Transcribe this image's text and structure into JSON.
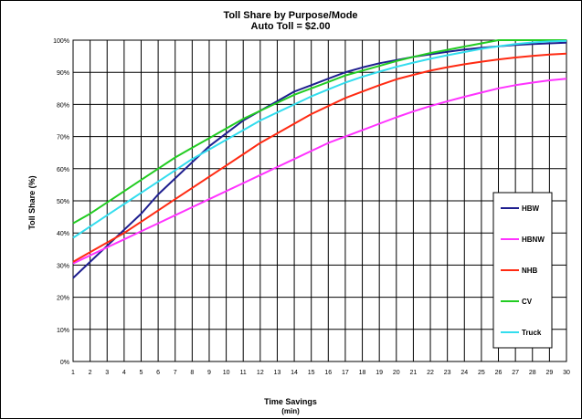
{
  "chart_data": {
    "type": "line",
    "title": "Toll Share by Purpose/Mode",
    "subtitle": "Auto Toll = $2.00",
    "xlabel_line1": "Time Savings",
    "xlabel_line2": "(min)",
    "ylabel": "Toll Share (%)",
    "x": [
      1,
      2,
      3,
      4,
      5,
      6,
      7,
      8,
      9,
      10,
      11,
      12,
      13,
      14,
      15,
      16,
      17,
      18,
      19,
      20,
      21,
      22,
      23,
      24,
      25,
      26,
      27,
      28,
      29,
      30
    ],
    "xlim": [
      1,
      30
    ],
    "ylim": [
      0,
      100
    ],
    "y_ticks": [
      "0%",
      "10%",
      "20%",
      "30%",
      "40%",
      "50%",
      "60%",
      "70%",
      "80%",
      "90%",
      "100%"
    ],
    "grid": true,
    "legend_position": "right",
    "series": [
      {
        "name": "HBW",
        "color": "#1f1f8f",
        "values": [
          26,
          31,
          36,
          41,
          46,
          52,
          57,
          62,
          67,
          71,
          75,
          78,
          81,
          84,
          86,
          88,
          90,
          91.5,
          92.8,
          93.8,
          94.8,
          95.6,
          96.4,
          97.1,
          97.6,
          98.1,
          98.5,
          98.8,
          99.0,
          99.2
        ]
      },
      {
        "name": "HBNW",
        "color": "#ff33ff",
        "values": [
          30.5,
          33,
          35.5,
          38,
          40.5,
          43,
          45.5,
          48,
          50.5,
          53,
          55.5,
          58,
          60.5,
          63,
          65.5,
          68,
          70,
          72,
          74,
          76,
          77.8,
          79.5,
          81,
          82.4,
          83.7,
          85,
          86,
          86.8,
          87.5,
          88
        ]
      },
      {
        "name": "NHB",
        "color": "#ff2a12",
        "values": [
          31,
          34,
          37,
          40,
          43.5,
          47,
          50.5,
          54,
          57.5,
          61,
          64.5,
          68,
          71,
          74,
          77,
          79.5,
          82,
          84,
          86,
          87.8,
          89.2,
          90.5,
          91.6,
          92.5,
          93.3,
          94,
          94.6,
          95.1,
          95.5,
          95.8
        ]
      },
      {
        "name": "CV",
        "color": "#22cc22",
        "values": [
          43,
          46,
          49.5,
          53,
          56.5,
          60,
          63.5,
          66.5,
          69.5,
          72.5,
          75.5,
          78,
          80.5,
          83,
          85,
          87,
          89,
          90.5,
          92,
          93.5,
          94.8,
          96,
          97,
          98,
          99,
          100,
          100,
          100,
          100,
          100
        ]
      },
      {
        "name": "Truck",
        "color": "#33ddee",
        "values": [
          38.5,
          42,
          45.5,
          49,
          52.5,
          56,
          59.5,
          63,
          66,
          69,
          72,
          75,
          77.5,
          80,
          82.5,
          84.7,
          86.8,
          88.6,
          90.2,
          91.7,
          93,
          94.2,
          95.3,
          96.3,
          97.3,
          98.1,
          98.8,
          99.3,
          99.6,
          99.8
        ]
      }
    ]
  }
}
